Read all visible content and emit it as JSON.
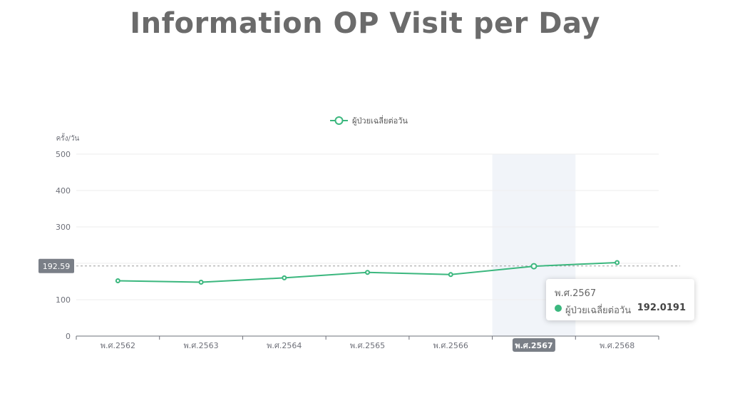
{
  "page": {
    "title": "Information OP Visit per Day"
  },
  "chart_data": {
    "type": "line",
    "title": "",
    "xlabel": "",
    "ylabel": "ครั้ง/วัน",
    "categories": [
      "พ.ศ.2562",
      "พ.ศ.2563",
      "พ.ศ.2564",
      "พ.ศ.2565",
      "พ.ศ.2566",
      "พ.ศ.2567",
      "พ.ศ.2568"
    ],
    "series": [
      {
        "name": "ผู้ป่วยเฉลี่ยต่อวัน",
        "values": [
          152,
          148,
          160,
          175,
          169,
          192.0191,
          202
        ]
      }
    ],
    "ylim": [
      0,
      500
    ],
    "yticks": [
      0,
      100,
      200,
      300,
      400,
      500
    ],
    "ytick_labels": [
      "0",
      "100",
      "",
      "300",
      "400",
      "500"
    ],
    "grid": true,
    "legend_position": "top-center",
    "colors": {
      "series": "#3bb77e",
      "axis": "#6e7079",
      "grid": "#eeeeee",
      "highlight_band": "#f1f4f9",
      "pointer_label_bg": "#7a7f87"
    },
    "axis_pointer": {
      "y_value_label": "192.59",
      "x_highlight_label": "พ.ศ.2567",
      "highlight_index": 5
    },
    "tooltip": {
      "title": "พ.ศ.2567",
      "series_name": "ผู้ป่วยเฉลี่ยต่อวัน",
      "value": "192.0191"
    }
  }
}
